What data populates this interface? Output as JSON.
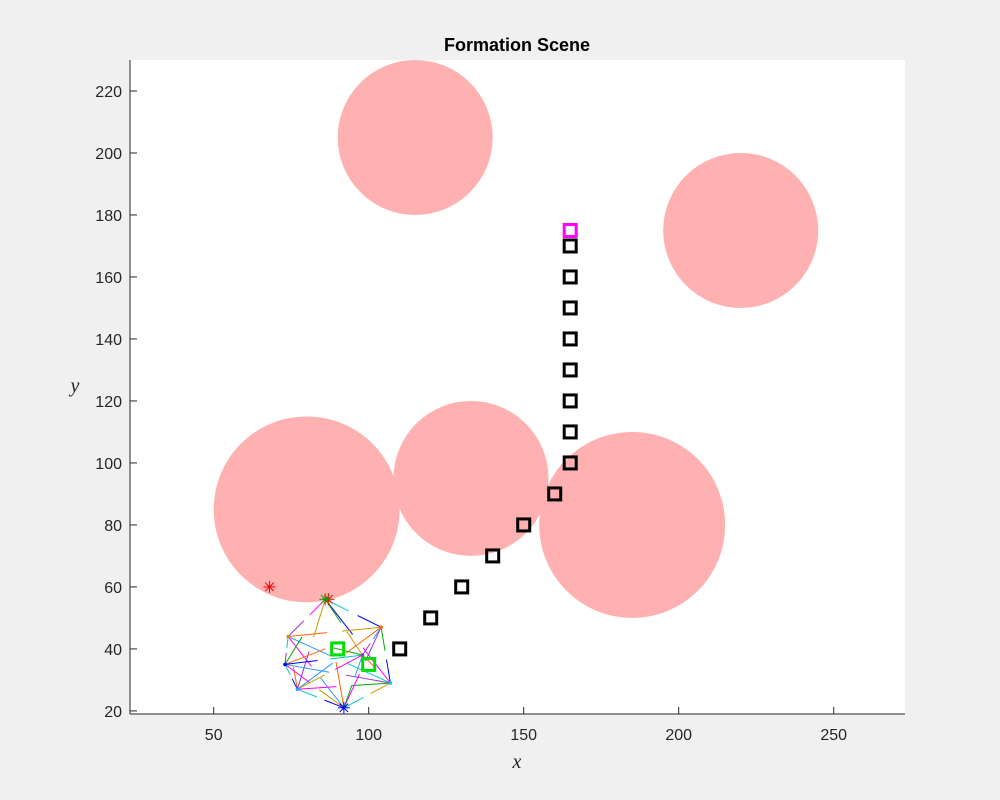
{
  "chart_data": {
    "type": "scatter",
    "title": "Formation Scene",
    "xlabel": "x",
    "ylabel": "y",
    "xlim": [
      23,
      273
    ],
    "ylim": [
      19,
      230
    ],
    "xticks": [
      50,
      100,
      150,
      200,
      250
    ],
    "yticks": [
      20,
      40,
      60,
      80,
      100,
      120,
      140,
      160,
      180,
      200,
      220
    ],
    "grid": false,
    "legend": "none",
    "obstacles": [
      {
        "x": 115,
        "y": 205,
        "r": 25
      },
      {
        "x": 220,
        "y": 175,
        "r": 25
      },
      {
        "x": 80,
        "y": 85,
        "r": 30
      },
      {
        "x": 133,
        "y": 95,
        "r": 25
      },
      {
        "x": 185,
        "y": 80,
        "r": 30
      }
    ],
    "obstacle_color": "#ffb0b0",
    "path": {
      "color": "#000000",
      "points": [
        {
          "x": 110,
          "y": 40
        },
        {
          "x": 120,
          "y": 50
        },
        {
          "x": 130,
          "y": 60
        },
        {
          "x": 140,
          "y": 70
        },
        {
          "x": 150,
          "y": 80
        },
        {
          "x": 160,
          "y": 90
        },
        {
          "x": 165,
          "y": 100
        },
        {
          "x": 165,
          "y": 110
        },
        {
          "x": 165,
          "y": 120
        },
        {
          "x": 165,
          "y": 130
        },
        {
          "x": 165,
          "y": 140
        },
        {
          "x": 165,
          "y": 150
        },
        {
          "x": 165,
          "y": 160
        },
        {
          "x": 165,
          "y": 170
        }
      ]
    },
    "goal": {
      "x": 165,
      "y": 175,
      "color": "#ff00ff"
    },
    "leaders": {
      "color": "#00dd00",
      "points": [
        {
          "x": 90,
          "y": 40
        },
        {
          "x": 100,
          "y": 35
        }
      ]
    },
    "agents": [
      {
        "x": 86,
        "y": 56
      },
      {
        "x": 74,
        "y": 44
      },
      {
        "x": 104,
        "y": 47
      },
      {
        "x": 107,
        "y": 29
      },
      {
        "x": 92,
        "y": 21
      },
      {
        "x": 77,
        "y": 27
      },
      {
        "x": 73,
        "y": 35
      },
      {
        "x": 98,
        "y": 38
      }
    ],
    "markers": [
      {
        "x": 68,
        "y": 60,
        "color": "#ff0000"
      },
      {
        "x": 87,
        "y": 56,
        "color": "#ff0000"
      },
      {
        "x": 86,
        "y": 56,
        "color": "#00aa00"
      },
      {
        "x": 92,
        "y": 21,
        "color": "#0000ff"
      }
    ],
    "interaction_colors": [
      "#ff00ff",
      "#00cccc",
      "#0000ff",
      "#cc9900",
      "#00aa00",
      "#9933cc",
      "#ff6600",
      "#3399ff"
    ]
  }
}
